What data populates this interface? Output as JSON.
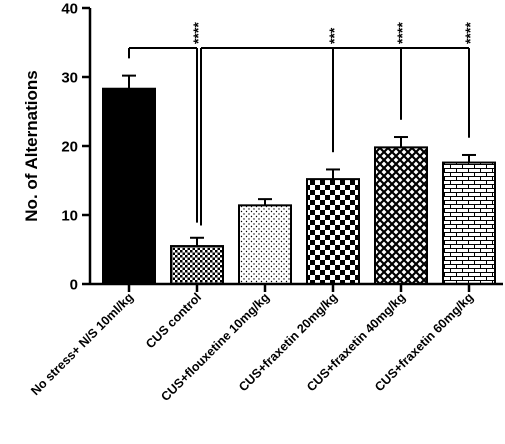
{
  "chart_data": {
    "type": "bar",
    "title": "",
    "xlabel": "",
    "ylabel": "No. of Alternations",
    "ylim": [
      0,
      40
    ],
    "yticks": [
      0,
      10,
      20,
      30,
      40
    ],
    "grid": false,
    "categories": [
      "No stress+ N/S 10ml/kg",
      "CUS control",
      "CUS+flouxetine 10mg/kg",
      "CUS+fraxetin 20mg/kg",
      "CUS+fraxetin 40mg/kg",
      "CUS+fraxetin 60mg/kg"
    ],
    "values": [
      28.3,
      5.5,
      11.4,
      15.2,
      19.8,
      17.6
    ],
    "errors": [
      1.9,
      1.2,
      0.9,
      1.4,
      1.5,
      1.1
    ],
    "fill_patterns": [
      "solid-black",
      "dense-checker",
      "dots",
      "checker",
      "diamond-crosshatch",
      "brick"
    ],
    "significance": [
      {
        "from": "No stress+ N/S 10ml/kg",
        "to": "CUS control",
        "label": "****"
      },
      {
        "from": "CUS control",
        "to": "CUS+fraxetin 20mg/kg",
        "label": "***"
      },
      {
        "from": "CUS control",
        "to": "CUS+fraxetin 40mg/kg",
        "label": "****"
      },
      {
        "from": "CUS control",
        "to": "CUS+fraxetin 60mg/kg",
        "label": "****"
      }
    ]
  }
}
